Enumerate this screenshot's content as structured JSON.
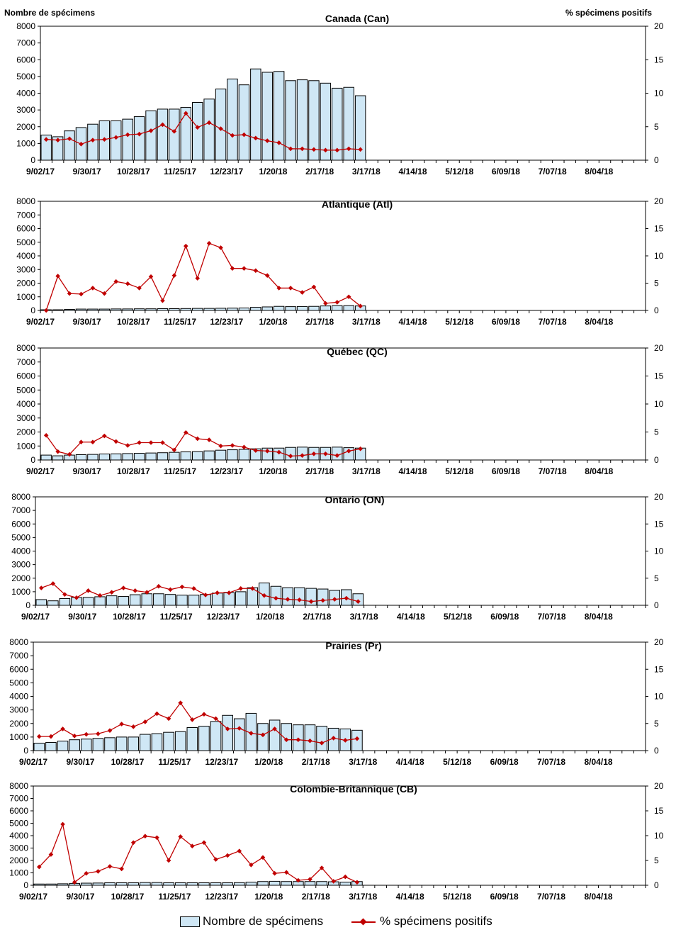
{
  "left_axis_title": "Nombre de spécimens",
  "right_axis_title": "% spécimens positifs",
  "legend": {
    "bars_label": "Nombre de spécimens",
    "line_label": "% spécimens positifs"
  },
  "colors": {
    "bar_fill": "#cfe7f5",
    "bar_stroke": "#000000",
    "line": "#c00000"
  },
  "x_tick_labels": [
    "9/02/17",
    "9/30/17",
    "10/28/17",
    "11/25/17",
    "12/23/17",
    "1/20/18",
    "2/17/18",
    "3/17/18",
    "4/14/18",
    "5/12/18",
    "6/09/18",
    "7/07/18",
    "8/04/18"
  ],
  "chart_data": [
    {
      "type": "bar+line",
      "title": "Canada (Can)",
      "ylim": [
        0,
        8000
      ],
      "y2lim": [
        0,
        20
      ],
      "y_ticks": [
        0,
        1000,
        2000,
        3000,
        4000,
        5000,
        6000,
        7000,
        8000
      ],
      "y2_ticks": [
        0,
        5,
        10,
        15,
        20
      ],
      "n_weeks": 52,
      "specimens": [
        1500,
        1400,
        1750,
        1950,
        2150,
        2350,
        2350,
        2450,
        2600,
        2950,
        3050,
        3050,
        3150,
        3450,
        3650,
        4250,
        4850,
        4500,
        5450,
        5250,
        5300,
        4750,
        4800,
        4750,
        4600,
        4300,
        4350,
        3850
      ],
      "pct_positive": [
        3.1,
        3.0,
        3.2,
        2.4,
        3.0,
        3.1,
        3.4,
        3.8,
        3.9,
        4.4,
        5.3,
        4.3,
        7.0,
        4.9,
        5.6,
        4.7,
        3.7,
        3.8,
        3.3,
        2.9,
        2.6,
        1.7,
        1.7,
        1.6,
        1.5,
        1.5,
        1.7,
        1.6
      ]
    },
    {
      "type": "bar+line",
      "title": "Atlantique (Atl)",
      "ylim": [
        0,
        8000
      ],
      "y2lim": [
        0,
        20
      ],
      "y_ticks": [
        0,
        1000,
        2000,
        3000,
        4000,
        5000,
        6000,
        7000,
        8000
      ],
      "y2_ticks": [
        0,
        5,
        10,
        15,
        20
      ],
      "n_weeks": 52,
      "specimens": [
        50,
        50,
        80,
        100,
        100,
        100,
        110,
        110,
        120,
        120,
        130,
        130,
        140,
        150,
        150,
        160,
        170,
        180,
        230,
        260,
        300,
        280,
        290,
        300,
        330,
        350,
        350,
        330
      ],
      "pct_positive": [
        0,
        6.3,
        3.1,
        3.0,
        4.1,
        3.1,
        5.3,
        4.9,
        4.1,
        6.2,
        1.8,
        6.4,
        11.8,
        5.9,
        12.3,
        11.5,
        7.7,
        7.7,
        7.3,
        6.4,
        4.1,
        4.1,
        3.3,
        4.3,
        1.3,
        1.5,
        2.5,
        0.8
      ]
    },
    {
      "type": "bar+line",
      "title": "Québec (QC)",
      "ylim": [
        0,
        8000
      ],
      "y2lim": [
        0,
        20
      ],
      "y_ticks": [
        0,
        1000,
        2000,
        3000,
        4000,
        5000,
        6000,
        7000,
        8000
      ],
      "y2_ticks": [
        0,
        5,
        10,
        15,
        20
      ],
      "n_weeks": 52,
      "specimens": [
        350,
        300,
        350,
        380,
        400,
        430,
        440,
        460,
        480,
        500,
        520,
        550,
        580,
        600,
        650,
        700,
        730,
        760,
        800,
        850,
        850,
        900,
        920,
        900,
        900,
        920,
        880,
        850
      ],
      "pct_positive": [
        4.4,
        1.5,
        1.0,
        3.2,
        3.2,
        4.3,
        3.3,
        2.6,
        3.1,
        3.1,
        3.1,
        1.8,
        4.9,
        3.8,
        3.6,
        2.5,
        2.6,
        2.3,
        1.7,
        1.6,
        1.4,
        0.7,
        0.8,
        1.1,
        1.1,
        0.8,
        1.6,
        2.0
      ]
    },
    {
      "type": "bar+line",
      "title": "Ontario (ON)",
      "ylim": [
        0,
        8000
      ],
      "y2lim": [
        0,
        20
      ],
      "y_ticks": [
        0,
        1000,
        2000,
        3000,
        4000,
        5000,
        6000,
        7000,
        8000
      ],
      "y2_ticks": [
        0,
        5,
        10,
        15,
        20
      ],
      "n_weeks": 52,
      "specimens": [
        420,
        330,
        500,
        580,
        580,
        630,
        700,
        650,
        780,
        850,
        850,
        800,
        750,
        750,
        800,
        900,
        950,
        1000,
        1300,
        1650,
        1400,
        1300,
        1300,
        1250,
        1200,
        1100,
        1150,
        850
      ],
      "pct_positive": [
        3.2,
        4.0,
        2.0,
        1.4,
        2.7,
        1.8,
        2.4,
        3.2,
        2.7,
        2.4,
        3.5,
        2.9,
        3.4,
        3.1,
        1.9,
        2.3,
        2.3,
        3.1,
        3.1,
        1.8,
        1.3,
        1.1,
        1.0,
        0.7,
        0.9,
        1.1,
        1.3,
        0.7
      ]
    },
    {
      "type": "bar+line",
      "title": "Prairies (Pr)",
      "ylim": [
        0,
        8000
      ],
      "y2lim": [
        0,
        20
      ],
      "y_ticks": [
        0,
        1000,
        2000,
        3000,
        4000,
        5000,
        6000,
        7000,
        8000
      ],
      "y2_ticks": [
        0,
        5,
        10,
        15,
        20
      ],
      "n_weeks": 52,
      "specimens": [
        550,
        600,
        700,
        800,
        850,
        900,
        950,
        1000,
        1000,
        1200,
        1250,
        1350,
        1400,
        1700,
        1800,
        2150,
        2600,
        2350,
        2750,
        2000,
        2250,
        2000,
        1900,
        1900,
        1800,
        1650,
        1600,
        1500
      ],
      "pct_positive": [
        2.6,
        2.6,
        4.0,
        2.7,
        3.0,
        3.1,
        3.7,
        4.9,
        4.4,
        5.3,
        6.8,
        5.9,
        8.8,
        5.7,
        6.7,
        5.9,
        4.0,
        4.1,
        3.2,
        2.9,
        4.0,
        2.0,
        2.0,
        1.8,
        1.4,
        2.3,
        1.9,
        2.2
      ]
    },
    {
      "type": "bar+line",
      "title": "Colombie-Britannique (CB)",
      "ylim": [
        0,
        8000
      ],
      "y2lim": [
        0,
        20
      ],
      "y_ticks": [
        0,
        1000,
        2000,
        3000,
        4000,
        5000,
        6000,
        7000,
        8000
      ],
      "y2_ticks": [
        0,
        5,
        10,
        15,
        20
      ],
      "n_weeks": 52,
      "specimens": [
        100,
        100,
        120,
        150,
        170,
        180,
        200,
        200,
        200,
        220,
        220,
        200,
        200,
        200,
        200,
        200,
        200,
        210,
        250,
        300,
        320,
        300,
        300,
        300,
        300,
        280,
        250,
        300
      ],
      "pct_positive": [
        3.7,
        6.2,
        12.3,
        0.6,
        2.4,
        2.8,
        3.8,
        3.3,
        8.6,
        9.9,
        9.6,
        5.0,
        9.8,
        7.9,
        8.6,
        5.2,
        6.0,
        6.9,
        4.1,
        5.6,
        2.4,
        2.6,
        1.0,
        1.2,
        3.5,
        0.8,
        1.7,
        0.6
      ]
    }
  ]
}
